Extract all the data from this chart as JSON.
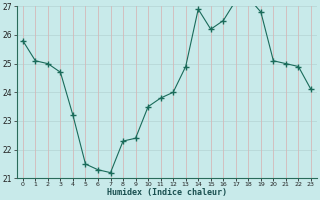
{
  "x": [
    0,
    1,
    2,
    3,
    4,
    5,
    6,
    7,
    8,
    9,
    10,
    11,
    12,
    13,
    14,
    15,
    16,
    17,
    18,
    19,
    20,
    21,
    22,
    23
  ],
  "y": [
    25.8,
    25.1,
    25.0,
    24.7,
    23.2,
    21.5,
    21.3,
    21.2,
    22.3,
    22.4,
    23.5,
    23.8,
    24.0,
    24.9,
    26.9,
    26.2,
    26.5,
    27.2,
    27.3,
    26.8,
    25.1,
    25.0,
    24.9,
    24.1
  ],
  "xlabel": "Humidex (Indice chaleur)",
  "ylim": [
    21,
    27
  ],
  "yticks": [
    21,
    22,
    23,
    24,
    25,
    26,
    27
  ],
  "xlim": [
    -0.5,
    23.5
  ],
  "line_color": "#1a6b5a",
  "marker_color": "#1a6b5a",
  "bg_color": "#c8eaea",
  "grid_color_h": "#b8d8d8",
  "grid_color_v": "#d4b8b8",
  "xlabel_color": "#1a5050"
}
